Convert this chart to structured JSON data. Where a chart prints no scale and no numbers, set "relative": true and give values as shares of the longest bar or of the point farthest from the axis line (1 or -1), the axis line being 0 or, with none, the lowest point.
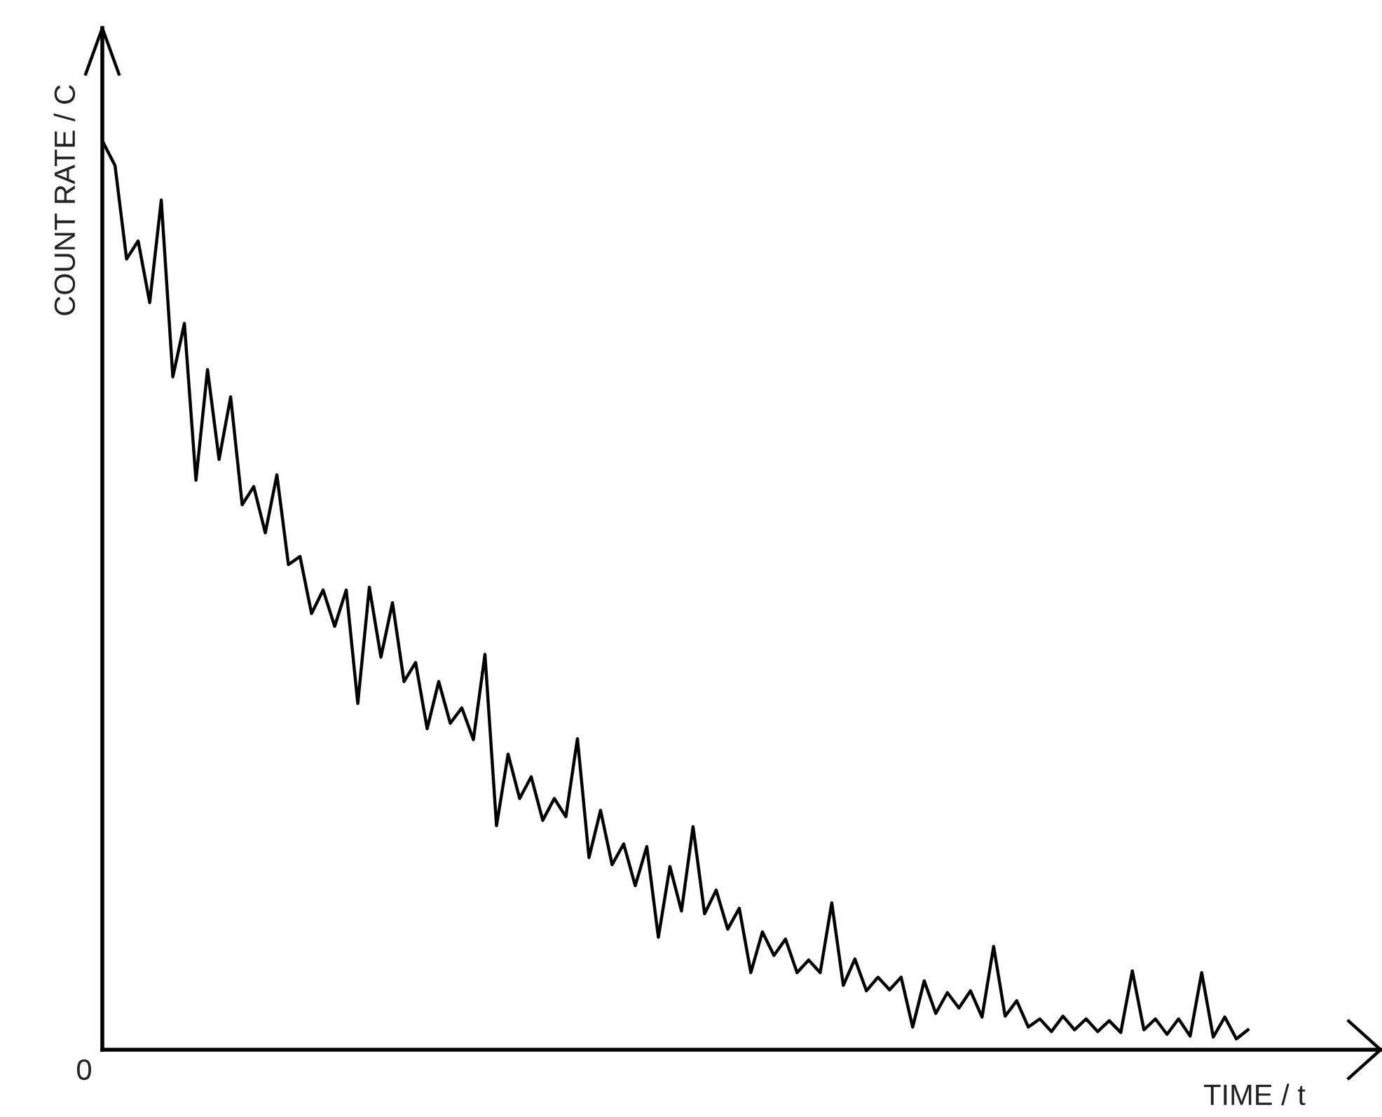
{
  "chart_data": {
    "type": "line",
    "relative": true,
    "xlabel": "TIME / t",
    "ylabel": "COUNT RATE / C",
    "annotations": [
      "0"
    ],
    "grid": false,
    "legend": false,
    "marker": "none",
    "line_style": "solid",
    "categories": [
      null,
      null,
      null,
      null,
      null,
      null,
      null,
      null,
      null,
      null,
      null,
      null,
      null,
      null,
      null,
      null,
      null,
      null,
      null,
      null,
      null,
      null,
      null,
      null,
      null,
      null,
      null,
      null,
      null,
      null,
      null,
      null,
      null,
      null,
      null,
      null,
      null,
      null,
      null,
      null,
      null,
      null,
      null,
      null,
      null,
      null,
      null,
      null,
      null,
      null,
      null,
      null,
      null,
      null,
      null,
      null,
      null,
      null,
      null,
      null,
      null,
      null,
      null,
      null,
      null,
      null,
      null,
      null,
      null,
      null,
      null,
      null,
      null,
      null,
      null,
      null,
      null,
      null,
      null,
      null,
      null,
      null,
      null,
      null,
      null,
      null,
      null,
      null,
      null,
      null,
      null,
      null,
      null,
      null,
      null,
      null,
      null,
      null,
      null,
      null
    ],
    "series": [
      {
        "color": "#000000",
        "values": [
          1.0,
          0.975,
          0.872,
          0.892,
          0.824,
          0.937,
          0.742,
          0.801,
          0.628,
          0.75,
          0.651,
          0.72,
          0.601,
          0.621,
          0.57,
          0.634,
          0.535,
          0.544,
          0.481,
          0.507,
          0.467,
          0.507,
          0.382,
          0.51,
          0.433,
          0.493,
          0.406,
          0.427,
          0.354,
          0.406,
          0.36,
          0.377,
          0.342,
          0.436,
          0.247,
          0.326,
          0.277,
          0.301,
          0.253,
          0.277,
          0.257,
          0.343,
          0.212,
          0.264,
          0.204,
          0.227,
          0.181,
          0.224,
          0.124,
          0.202,
          0.153,
          0.246,
          0.15,
          0.176,
          0.133,
          0.156,
          0.085,
          0.13,
          0.104,
          0.122,
          0.085,
          0.099,
          0.085,
          0.162,
          0.071,
          0.1,
          0.065,
          0.08,
          0.066,
          0.08,
          0.025,
          0.076,
          0.04,
          0.063,
          0.046,
          0.065,
          0.036,
          0.114,
          0.037,
          0.054,
          0.025,
          0.034,
          0.02,
          0.037,
          0.022,
          0.034,
          0.02,
          0.032,
          0.019,
          0.087,
          0.022,
          0.034,
          0.017,
          0.034,
          0.015,
          0.085,
          0.014,
          0.036,
          0.012,
          0.022
        ]
      }
    ]
  }
}
